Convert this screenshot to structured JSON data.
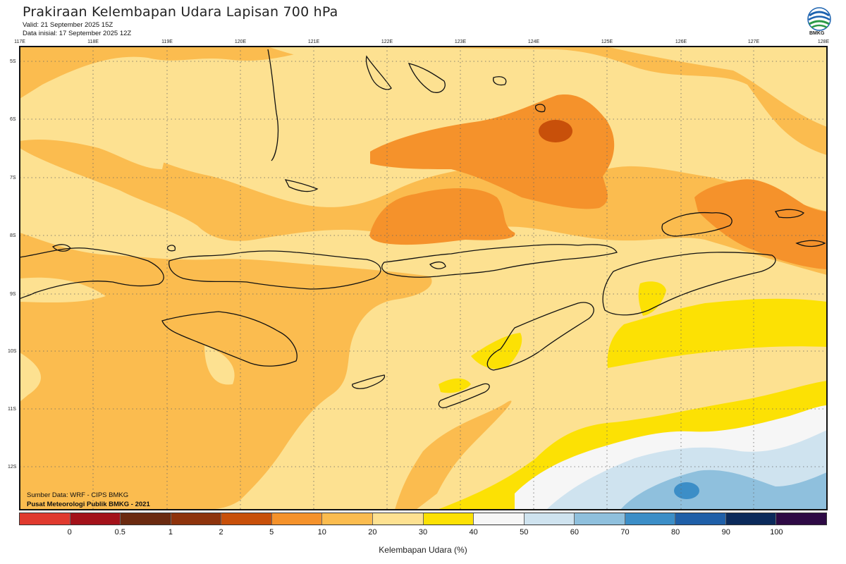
{
  "header": {
    "title": "Prakiraan Kelembapan Udara Lapisan 700 hPa",
    "valid": "Valid: 21 September 2025 15Z",
    "init": "Data inisial: 17 September 2025 12Z"
  },
  "logo": {
    "text": "BMKG"
  },
  "map": {
    "lon_ticks": [
      "117E",
      "118E",
      "119E",
      "120E",
      "121E",
      "122E",
      "123E",
      "124E",
      "125E",
      "126E",
      "127E",
      "128E"
    ],
    "lat_ticks": [
      "5S",
      "6S",
      "7S",
      "8S",
      "9S",
      "10S",
      "11S",
      "12S"
    ],
    "lon_range": [
      117,
      128
    ],
    "lat_range": [
      -4.8,
      -12.8
    ],
    "gridlines": "dotted"
  },
  "footer": {
    "source": "Sumber Data: WRF - CIPS BMKG",
    "center": "Pusat Meteorologi Publik BMKG - 2021"
  },
  "legend": {
    "title": "Kelembapan Udara (%)",
    "colors": [
      "#e03a2e",
      "#a3121a",
      "#6b2a10",
      "#8e330c",
      "#c8500a",
      "#f5922b",
      "#fbbc4f",
      "#fde191",
      "#fce104",
      "#f6f6f6",
      "#cfe3ef",
      "#8fc0dd",
      "#3c8ec7",
      "#1f5fa8",
      "#0b2a5b",
      "#2e0a45"
    ],
    "labels": [
      "0",
      "0.5",
      "1",
      "2",
      "5",
      "10",
      "20",
      "30",
      "40",
      "50",
      "60",
      "70",
      "80",
      "90",
      "100"
    ]
  }
}
